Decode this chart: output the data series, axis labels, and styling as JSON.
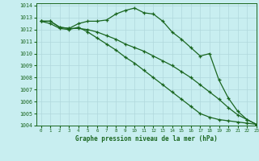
{
  "title": "Graphe pression niveau de la mer (hPa)",
  "bg_color": "#c8eef0",
  "grid_color": "#b0d8dc",
  "line_color": "#1a6620",
  "xlim": [
    -0.5,
    23
  ],
  "ylim": [
    1004,
    1014.2
  ],
  "yticks": [
    1004,
    1005,
    1006,
    1007,
    1008,
    1009,
    1010,
    1011,
    1012,
    1013,
    1014
  ],
  "xticks": [
    0,
    1,
    2,
    3,
    4,
    5,
    6,
    7,
    8,
    9,
    10,
    11,
    12,
    13,
    14,
    15,
    16,
    17,
    18,
    19,
    20,
    21,
    22,
    23
  ],
  "series": [
    [
      1012.7,
      1012.7,
      1012.2,
      1012.1,
      1012.5,
      1012.7,
      1012.7,
      1012.8,
      1013.3,
      1013.6,
      1013.8,
      1013.4,
      1013.3,
      1012.7,
      1011.8,
      1011.2,
      1010.5,
      1009.8,
      1010.0,
      1007.8,
      1006.3,
      1005.2,
      1004.5,
      1004.1
    ],
    [
      1012.7,
      1012.7,
      1012.2,
      1012.1,
      1012.1,
      1012.0,
      1011.8,
      1011.5,
      1011.2,
      1010.8,
      1010.5,
      1010.2,
      1009.8,
      1009.4,
      1009.0,
      1008.5,
      1008.0,
      1007.4,
      1006.8,
      1006.2,
      1005.5,
      1004.9,
      1004.5,
      1004.1
    ],
    [
      1012.7,
      1012.5,
      1012.1,
      1012.0,
      1012.2,
      1011.8,
      1011.3,
      1010.8,
      1010.3,
      1009.7,
      1009.2,
      1008.6,
      1008.0,
      1007.4,
      1006.8,
      1006.2,
      1005.6,
      1005.0,
      1004.7,
      1004.5,
      1004.4,
      1004.3,
      1004.2,
      1004.1
    ]
  ]
}
